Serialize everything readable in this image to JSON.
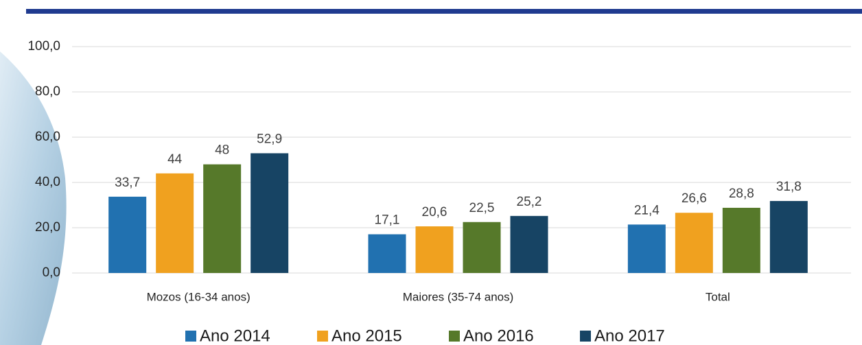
{
  "chart_data": {
    "type": "bar",
    "categories": [
      "Mozos (16-34 anos)",
      "Maiores (35-74 anos)",
      "Total"
    ],
    "series": [
      {
        "name": "Ano 2014",
        "color": "#2171b0",
        "values": [
          33.7,
          17.1,
          21.4
        ],
        "value_labels": [
          "33,7",
          "17,1",
          "21,4"
        ]
      },
      {
        "name": "Ano 2015",
        "color": "#f0a11f",
        "values": [
          44,
          20.6,
          26.6
        ],
        "value_labels": [
          "44",
          "20,6",
          "26,6"
        ]
      },
      {
        "name": "Ano 2016",
        "color": "#56792a",
        "values": [
          48,
          22.5,
          28.8
        ],
        "value_labels": [
          "48",
          "22,5",
          "28,8"
        ]
      },
      {
        "name": "Ano 2017",
        "color": "#174464",
        "values": [
          52.9,
          25.2,
          31.8
        ],
        "value_labels": [
          "52,9",
          "25,2",
          "31,8"
        ]
      }
    ],
    "ylim": [
      0,
      100
    ],
    "yticks": [
      {
        "value": 0,
        "label": "0,0"
      },
      {
        "value": 20,
        "label": "20,0"
      },
      {
        "value": 40,
        "label": "40,0"
      },
      {
        "value": 60,
        "label": "60,0"
      },
      {
        "value": 80,
        "label": "80,0"
      },
      {
        "value": 100,
        "label": "100,0"
      }
    ],
    "grid": true
  }
}
